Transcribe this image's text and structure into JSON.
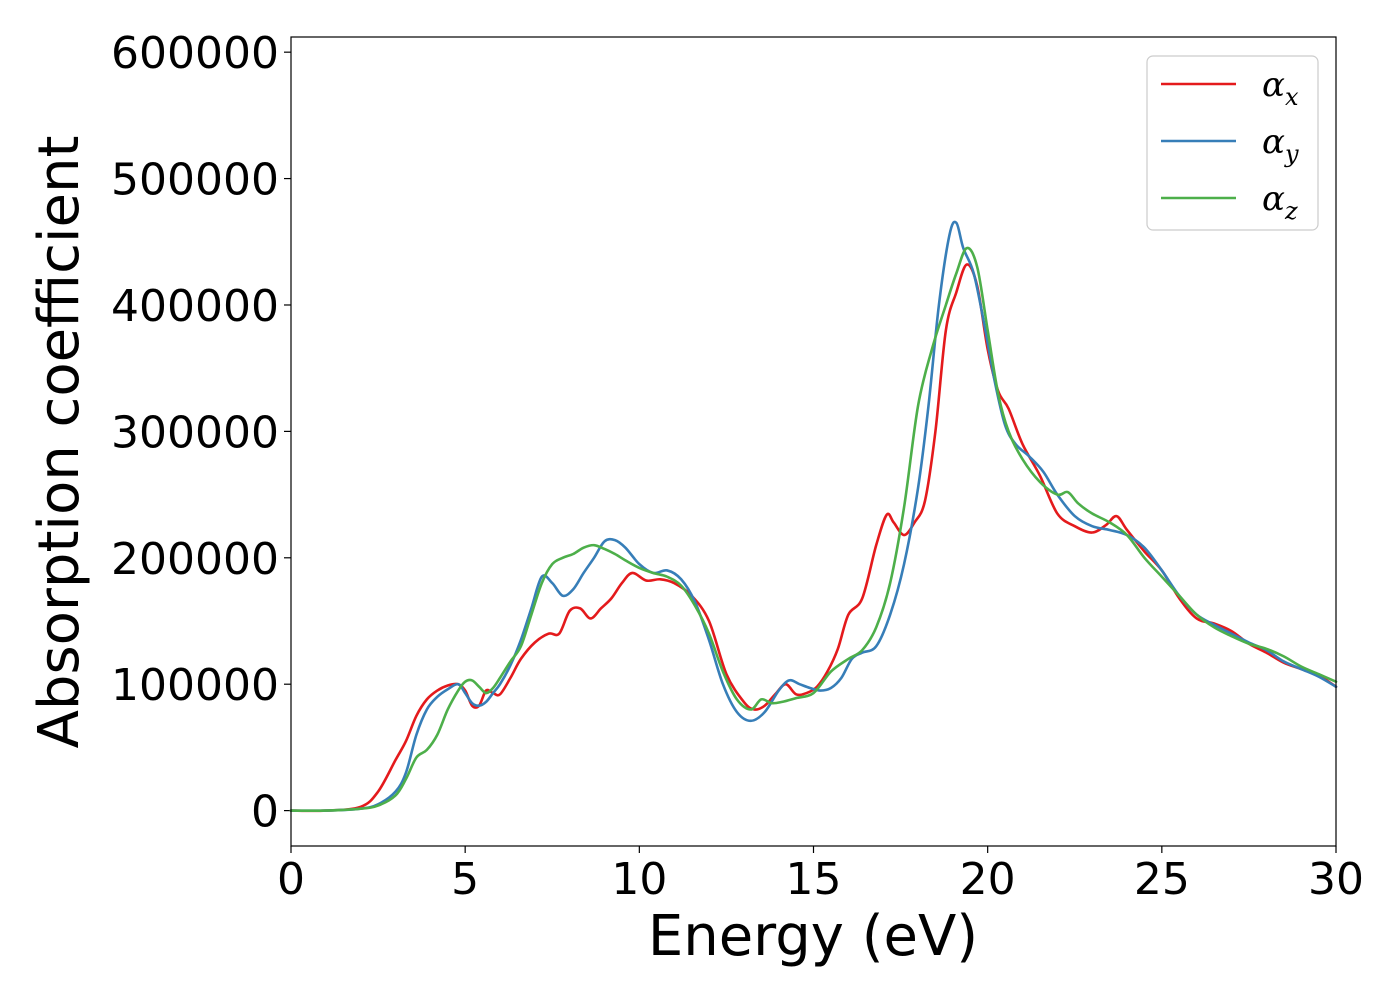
{
  "chart_data": {
    "type": "line",
    "title": "",
    "xlabel": "Energy (eV)",
    "ylabel": "Absorption coefficient",
    "xlim": [
      0,
      30
    ],
    "ylim": [
      -28000,
      612000
    ],
    "xticks": [
      0,
      5,
      10,
      15,
      20,
      25,
      30
    ],
    "yticks": [
      0,
      100000,
      200000,
      300000,
      400000,
      500000,
      600000
    ],
    "grid": false,
    "legend_position": "top-right",
    "series": [
      {
        "name": "α",
        "subscript": "x",
        "color": "#e41a1c",
        "x": [
          0,
          1,
          2,
          2.5,
          3,
          3.3,
          3.6,
          3.9,
          4.2,
          4.5,
          4.8,
          5.0,
          5.2,
          5.4,
          5.6,
          5.8,
          6.0,
          6.3,
          6.6,
          7.0,
          7.4,
          7.7,
          8.0,
          8.3,
          8.6,
          8.9,
          9.2,
          9.5,
          9.8,
          10.2,
          10.6,
          11.0,
          11.5,
          12.0,
          12.5,
          13.0,
          13.3,
          13.6,
          13.9,
          14.2,
          14.5,
          14.8,
          15.1,
          15.4,
          15.7,
          16.0,
          16.4,
          16.8,
          17.1,
          17.3,
          17.6,
          17.9,
          18.2,
          18.5,
          18.8,
          19.1,
          19.4,
          19.7,
          20.0,
          20.3,
          20.6,
          21.0,
          21.5,
          22.0,
          22.5,
          23.0,
          23.4,
          23.7,
          24.0,
          24.5,
          25.0,
          25.5,
          26.0,
          26.5,
          27.0,
          27.5,
          28.0,
          28.5,
          29.0,
          29.5,
          30.0
        ],
        "values": [
          0,
          0,
          3000,
          15000,
          40000,
          55000,
          75000,
          88000,
          95000,
          99000,
          100000,
          95000,
          83000,
          83000,
          95000,
          93000,
          92000,
          105000,
          120000,
          133000,
          140000,
          140000,
          158000,
          160000,
          152000,
          160000,
          168000,
          180000,
          188000,
          182000,
          183000,
          180000,
          170000,
          150000,
          108000,
          86000,
          80000,
          83000,
          92000,
          100000,
          92000,
          93000,
          98000,
          110000,
          128000,
          155000,
          168000,
          210000,
          234000,
          228000,
          218000,
          228000,
          245000,
          300000,
          380000,
          410000,
          432000,
          415000,
          365000,
          332000,
          318000,
          290000,
          265000,
          235000,
          225000,
          220000,
          226000,
          233000,
          222000,
          205000,
          190000,
          168000,
          152000,
          148000,
          142000,
          132000,
          125000,
          117000,
          112000,
          107000,
          98000
        ]
      },
      {
        "name": "α",
        "subscript": "y",
        "color": "#377eb8",
        "x": [
          0,
          1,
          2,
          2.5,
          3,
          3.3,
          3.6,
          3.9,
          4.2,
          4.5,
          4.8,
          5.0,
          5.2,
          5.4,
          5.6,
          5.8,
          6.0,
          6.3,
          6.6,
          6.9,
          7.2,
          7.5,
          7.8,
          8.1,
          8.4,
          8.7,
          9.0,
          9.3,
          9.6,
          10.0,
          10.4,
          10.8,
          11.2,
          11.6,
          12.0,
          12.4,
          12.8,
          13.2,
          13.6,
          14.0,
          14.3,
          14.6,
          14.9,
          15.2,
          15.5,
          15.8,
          16.1,
          16.4,
          16.8,
          17.2,
          17.6,
          18.0,
          18.3,
          18.6,
          18.9,
          19.1,
          19.3,
          19.6,
          19.9,
          20.2,
          20.5,
          20.8,
          21.2,
          21.6,
          22.0,
          22.5,
          23.0,
          23.5,
          24.0,
          24.5,
          25.0,
          25.5,
          26.0,
          26.5,
          27.0,
          27.5,
          28.0,
          28.5,
          29.0,
          29.5,
          30.0
        ],
        "values": [
          0,
          0,
          1500,
          5000,
          15000,
          30000,
          60000,
          80000,
          90000,
          96000,
          100000,
          93000,
          85000,
          83000,
          86000,
          93000,
          100000,
          115000,
          135000,
          160000,
          185000,
          180000,
          170000,
          175000,
          188000,
          200000,
          213000,
          214000,
          208000,
          195000,
          188000,
          190000,
          183000,
          165000,
          135000,
          100000,
          78000,
          71000,
          78000,
          95000,
          103000,
          100000,
          97000,
          95000,
          97000,
          105000,
          120000,
          125000,
          130000,
          155000,
          195000,
          255000,
          320000,
          400000,
          455000,
          465000,
          445000,
          425000,
          385000,
          340000,
          305000,
          290000,
          280000,
          268000,
          250000,
          233000,
          225000,
          222000,
          218000,
          208000,
          190000,
          170000,
          155000,
          147000,
          140000,
          133000,
          127000,
          118000,
          112000,
          106000,
          98000
        ]
      },
      {
        "name": "α",
        "subscript": "z",
        "color": "#4daf4a",
        "x": [
          0,
          1,
          2,
          2.5,
          3,
          3.3,
          3.6,
          3.9,
          4.2,
          4.5,
          4.8,
          5.0,
          5.2,
          5.4,
          5.6,
          5.8,
          6.0,
          6.3,
          6.6,
          6.9,
          7.2,
          7.5,
          7.8,
          8.1,
          8.4,
          8.7,
          9.0,
          9.3,
          9.6,
          10.0,
          10.4,
          10.8,
          11.2,
          11.6,
          12.0,
          12.4,
          12.8,
          13.2,
          13.5,
          13.8,
          14.1,
          14.5,
          15.0,
          15.5,
          16.0,
          16.4,
          16.8,
          17.2,
          17.6,
          18.0,
          18.4,
          18.8,
          19.1,
          19.4,
          19.7,
          20.0,
          20.3,
          20.6,
          21.0,
          21.5,
          22.0,
          22.3,
          22.6,
          23.0,
          23.5,
          24.0,
          24.5,
          25.0,
          25.5,
          26.0,
          26.5,
          27.0,
          27.5,
          28.0,
          28.5,
          29.0,
          29.5,
          30.0
        ],
        "values": [
          0,
          0,
          1500,
          4000,
          12000,
          25000,
          42000,
          48000,
          60000,
          80000,
          95000,
          102000,
          103000,
          98000,
          93000,
          97000,
          105000,
          118000,
          130000,
          155000,
          180000,
          195000,
          200000,
          203000,
          208000,
          210000,
          207000,
          203000,
          198000,
          192000,
          188000,
          185000,
          178000,
          162000,
          140000,
          110000,
          88000,
          80000,
          88000,
          85000,
          86000,
          89000,
          93000,
          110000,
          120000,
          127000,
          145000,
          180000,
          240000,
          320000,
          365000,
          400000,
          425000,
          445000,
          430000,
          380000,
          330000,
          300000,
          278000,
          260000,
          250000,
          252000,
          243000,
          235000,
          228000,
          218000,
          200000,
          185000,
          170000,
          155000,
          145000,
          138000,
          132000,
          128000,
          122000,
          114000,
          108000,
          102000
        ]
      }
    ]
  }
}
